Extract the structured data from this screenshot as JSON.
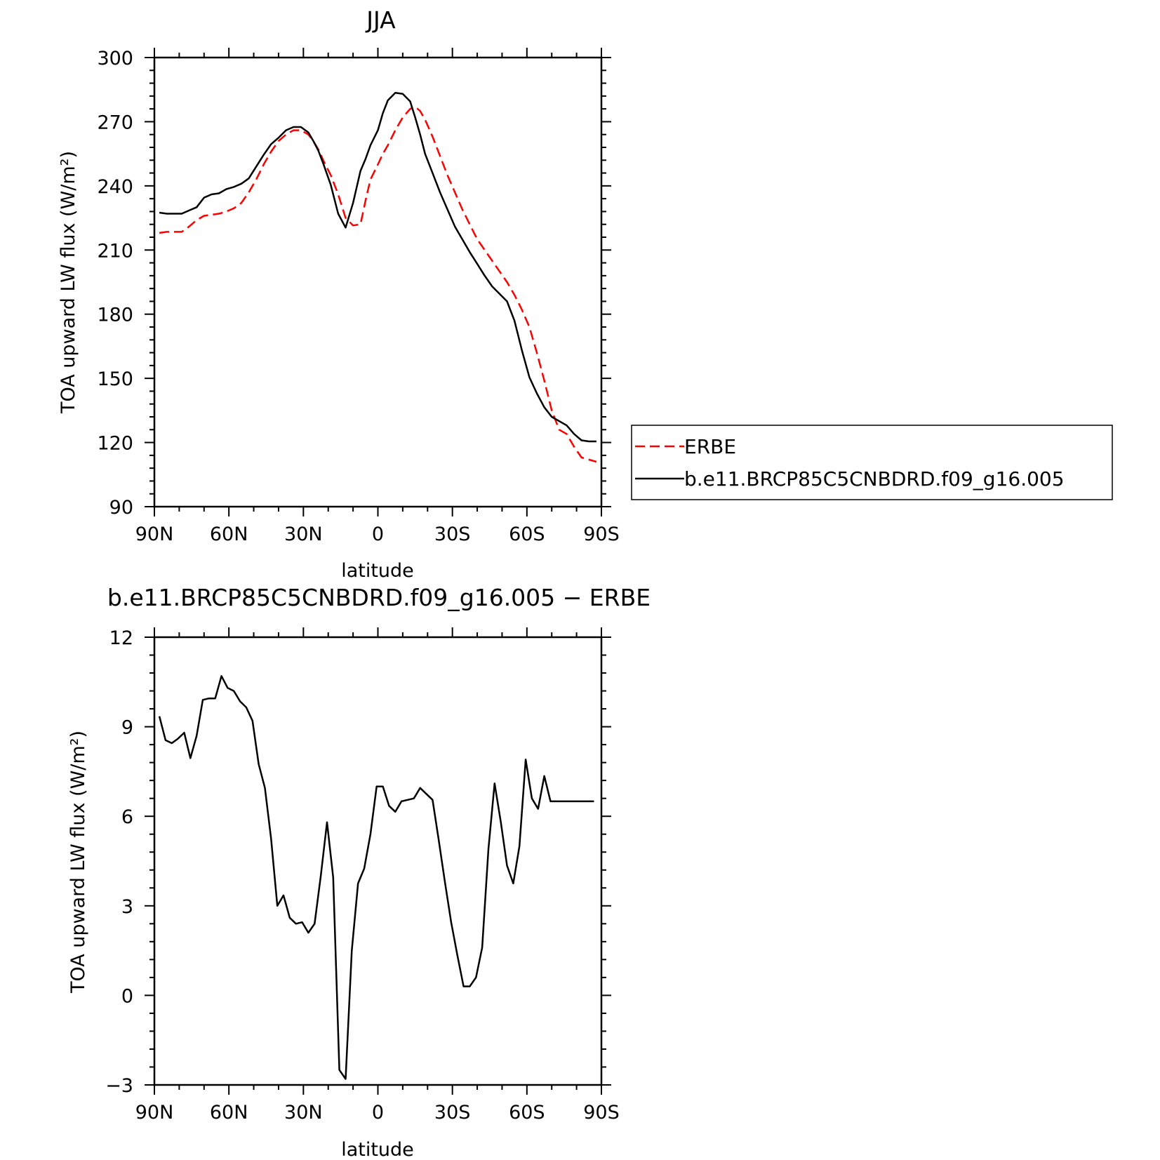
{
  "chart_data": [
    {
      "type": "line",
      "title": "JJA",
      "xlabel": "latitude",
      "ylabel": "TOA upward LW flux (W/m²)",
      "xlim": [
        -90,
        90
      ],
      "ylim": [
        90,
        300
      ],
      "xticks": [
        -90,
        -60,
        -30,
        0,
        30,
        60,
        90
      ],
      "xtick_labels": [
        "90N",
        "60N",
        "30N",
        "0",
        "30S",
        "60S",
        "90S"
      ],
      "yticks": [
        90,
        120,
        150,
        180,
        210,
        240,
        270,
        300
      ],
      "ytick_labels": [
        "90",
        "120",
        "150",
        "180",
        "210",
        "240",
        "270",
        "300"
      ],
      "grid": false,
      "legend_position": "outside-right",
      "series": [
        {
          "name": "ERBE",
          "color": "#ff0000",
          "dash": "dashed",
          "x": [
            -88,
            -85,
            -82,
            -79,
            -76,
            -73,
            -70,
            -67,
            -64,
            -61,
            -58,
            -55,
            -52,
            -49,
            -46,
            -43,
            -40,
            -37,
            -34,
            -31,
            -28,
            -26,
            -24,
            -22,
            -19,
            -16,
            -13,
            -10,
            -7,
            -5,
            -3,
            0,
            2,
            4,
            7,
            10,
            13,
            15,
            17,
            19,
            22,
            25,
            28,
            31,
            34,
            37,
            40,
            43,
            46,
            49,
            52,
            55,
            58,
            61,
            64,
            67,
            70,
            73,
            76,
            79,
            82,
            85,
            88
          ],
          "values": [
            218,
            218.5,
            218.5,
            218.5,
            221,
            224,
            226,
            226.5,
            227,
            228,
            229.5,
            232,
            237,
            243,
            250,
            256,
            261,
            264,
            266,
            266,
            264,
            261,
            257,
            252,
            245,
            236,
            225,
            221.5,
            222,
            233,
            243,
            250,
            255,
            259,
            266,
            272,
            276,
            277,
            275,
            271,
            263,
            254,
            245,
            237,
            229,
            222,
            215,
            210,
            205,
            200,
            195,
            189,
            182,
            174,
            162,
            149,
            135,
            126,
            124,
            118,
            113,
            112,
            111
          ],
          "x_shown": [
            -88,
            -85,
            -82,
            -79,
            -76,
            -73,
            -70,
            -67,
            -64,
            -61,
            -58,
            -55,
            -52,
            -49,
            -46,
            -43,
            -40,
            -37,
            -34,
            -31,
            -28,
            -26,
            -24,
            -22,
            -19,
            -16,
            -13,
            -10,
            -7,
            -5,
            -3,
            0,
            2,
            4,
            7,
            10,
            13,
            15,
            17,
            19,
            22,
            25,
            28,
            31,
            34,
            37,
            40,
            43,
            46,
            49,
            52,
            55,
            58,
            61,
            64,
            67,
            70,
            73,
            76,
            79,
            82,
            85,
            87.5
          ]
        },
        {
          "name": "b.e11.BRCP85C5CNBDRD.f09_g16.005",
          "color": "#000000",
          "dash": "solid",
          "x": [
            -88,
            -85,
            -82,
            -79,
            -76,
            -73,
            -70,
            -67,
            -64,
            -61,
            -58,
            -55,
            -52,
            -49,
            -46,
            -43,
            -40,
            -37,
            -34,
            -31,
            -28,
            -26,
            -24,
            -22,
            -19,
            -16,
            -13,
            -10,
            -7,
            -5,
            -3,
            0,
            2,
            4,
            7,
            10,
            13,
            15,
            17,
            19,
            22,
            25,
            28,
            31,
            34,
            37,
            40,
            43,
            46,
            49,
            52,
            55,
            58,
            61,
            64,
            67,
            70,
            73,
            76,
            79,
            82,
            85,
            88
          ],
          "values": [
            227.5,
            227,
            227,
            227,
            228.5,
            230,
            234.5,
            236,
            236.5,
            238.5,
            239.5,
            241,
            243.5,
            249,
            254.5,
            259.5,
            262.5,
            266,
            267.5,
            267.5,
            265,
            261,
            256.5,
            250.5,
            240.5,
            227,
            220.5,
            232,
            247,
            252.5,
            259,
            266,
            274,
            280,
            283.5,
            283,
            279.5,
            272,
            264,
            255,
            246,
            237,
            229,
            221,
            215,
            209,
            203.5,
            198,
            193,
            189.5,
            186,
            177,
            163,
            150.5,
            143,
            136.5,
            132,
            130,
            128,
            124,
            121,
            120.5,
            120.5
          ]
        }
      ]
    },
    {
      "type": "line",
      "title": "b.e11.BRCP85C5CNBDRD.f09_g16.005 − ERBE",
      "xlabel": "latitude",
      "ylabel": "TOA upward LW flux (W/m²)",
      "xlim": [
        -90,
        90
      ],
      "ylim": [
        -3,
        12
      ],
      "xticks": [
        -90,
        -60,
        -30,
        0,
        30,
        60,
        90
      ],
      "xtick_labels": [
        "90N",
        "60N",
        "30N",
        "0",
        "30S",
        "60S",
        "90S"
      ],
      "yticks": [
        -3,
        0,
        3,
        6,
        9,
        12
      ],
      "ytick_labels": [
        "−3",
        "0",
        "3",
        "6",
        "9",
        "12"
      ],
      "grid": false,
      "series": [
        {
          "color": "#000000",
          "x": [
            -88,
            -85.5,
            -83,
            -80.5,
            -78,
            -75.5,
            -73,
            -70.5,
            -68,
            -65.5,
            -63,
            -60.5,
            -58,
            -55.5,
            -53,
            -50.5,
            -48,
            -45.5,
            -43,
            -40.5,
            -38,
            -35.5,
            -33,
            -30.5,
            -28,
            -25.5,
            -23,
            -20.5,
            -18,
            -15.5,
            -13,
            -10.5,
            -8,
            -5.5,
            -3,
            -0.5,
            2,
            4.5,
            7,
            9.5,
            12,
            14.5,
            17,
            19.5,
            22,
            24.5,
            27,
            29.5,
            32,
            34.5,
            37,
            39.5,
            42,
            44.5,
            47,
            49.5,
            52,
            54.5,
            57,
            59.5,
            62,
            64.5,
            67,
            69.5,
            72,
            74.5,
            77,
            79.5,
            82,
            84.5,
            87
          ],
          "values": [
            9.35,
            8.55,
            8.45,
            8.6,
            8.8,
            7.95,
            8.7,
            9.9,
            9.95,
            9.95,
            10.7,
            10.3,
            10.2,
            9.85,
            9.65,
            9.2,
            7.75,
            6.95,
            5.25,
            3.0,
            3.35,
            2.6,
            2.4,
            2.45,
            2.1,
            2.4,
            4.0,
            5.8,
            3.95,
            -2.5,
            -2.8,
            1.5,
            3.75,
            4.25,
            5.4,
            7.0,
            7.0,
            6.35,
            6.15,
            6.5,
            6.55,
            6.6,
            6.95,
            6.75,
            6.55,
            5.2,
            3.8,
            2.45,
            1.35,
            0.3,
            0.3,
            0.6,
            1.6,
            4.9,
            7.1,
            5.8,
            4.35,
            3.75,
            5.0,
            7.9,
            6.6,
            6.25,
            7.35,
            6.5,
            6.5,
            6.5,
            6.5,
            6.5,
            6.5,
            6.5,
            6.5
          ]
        }
      ]
    }
  ],
  "legend": {
    "entries": [
      "ERBE",
      "b.e11.BRCP85C5CNBDRD.f09_g16.005"
    ]
  }
}
